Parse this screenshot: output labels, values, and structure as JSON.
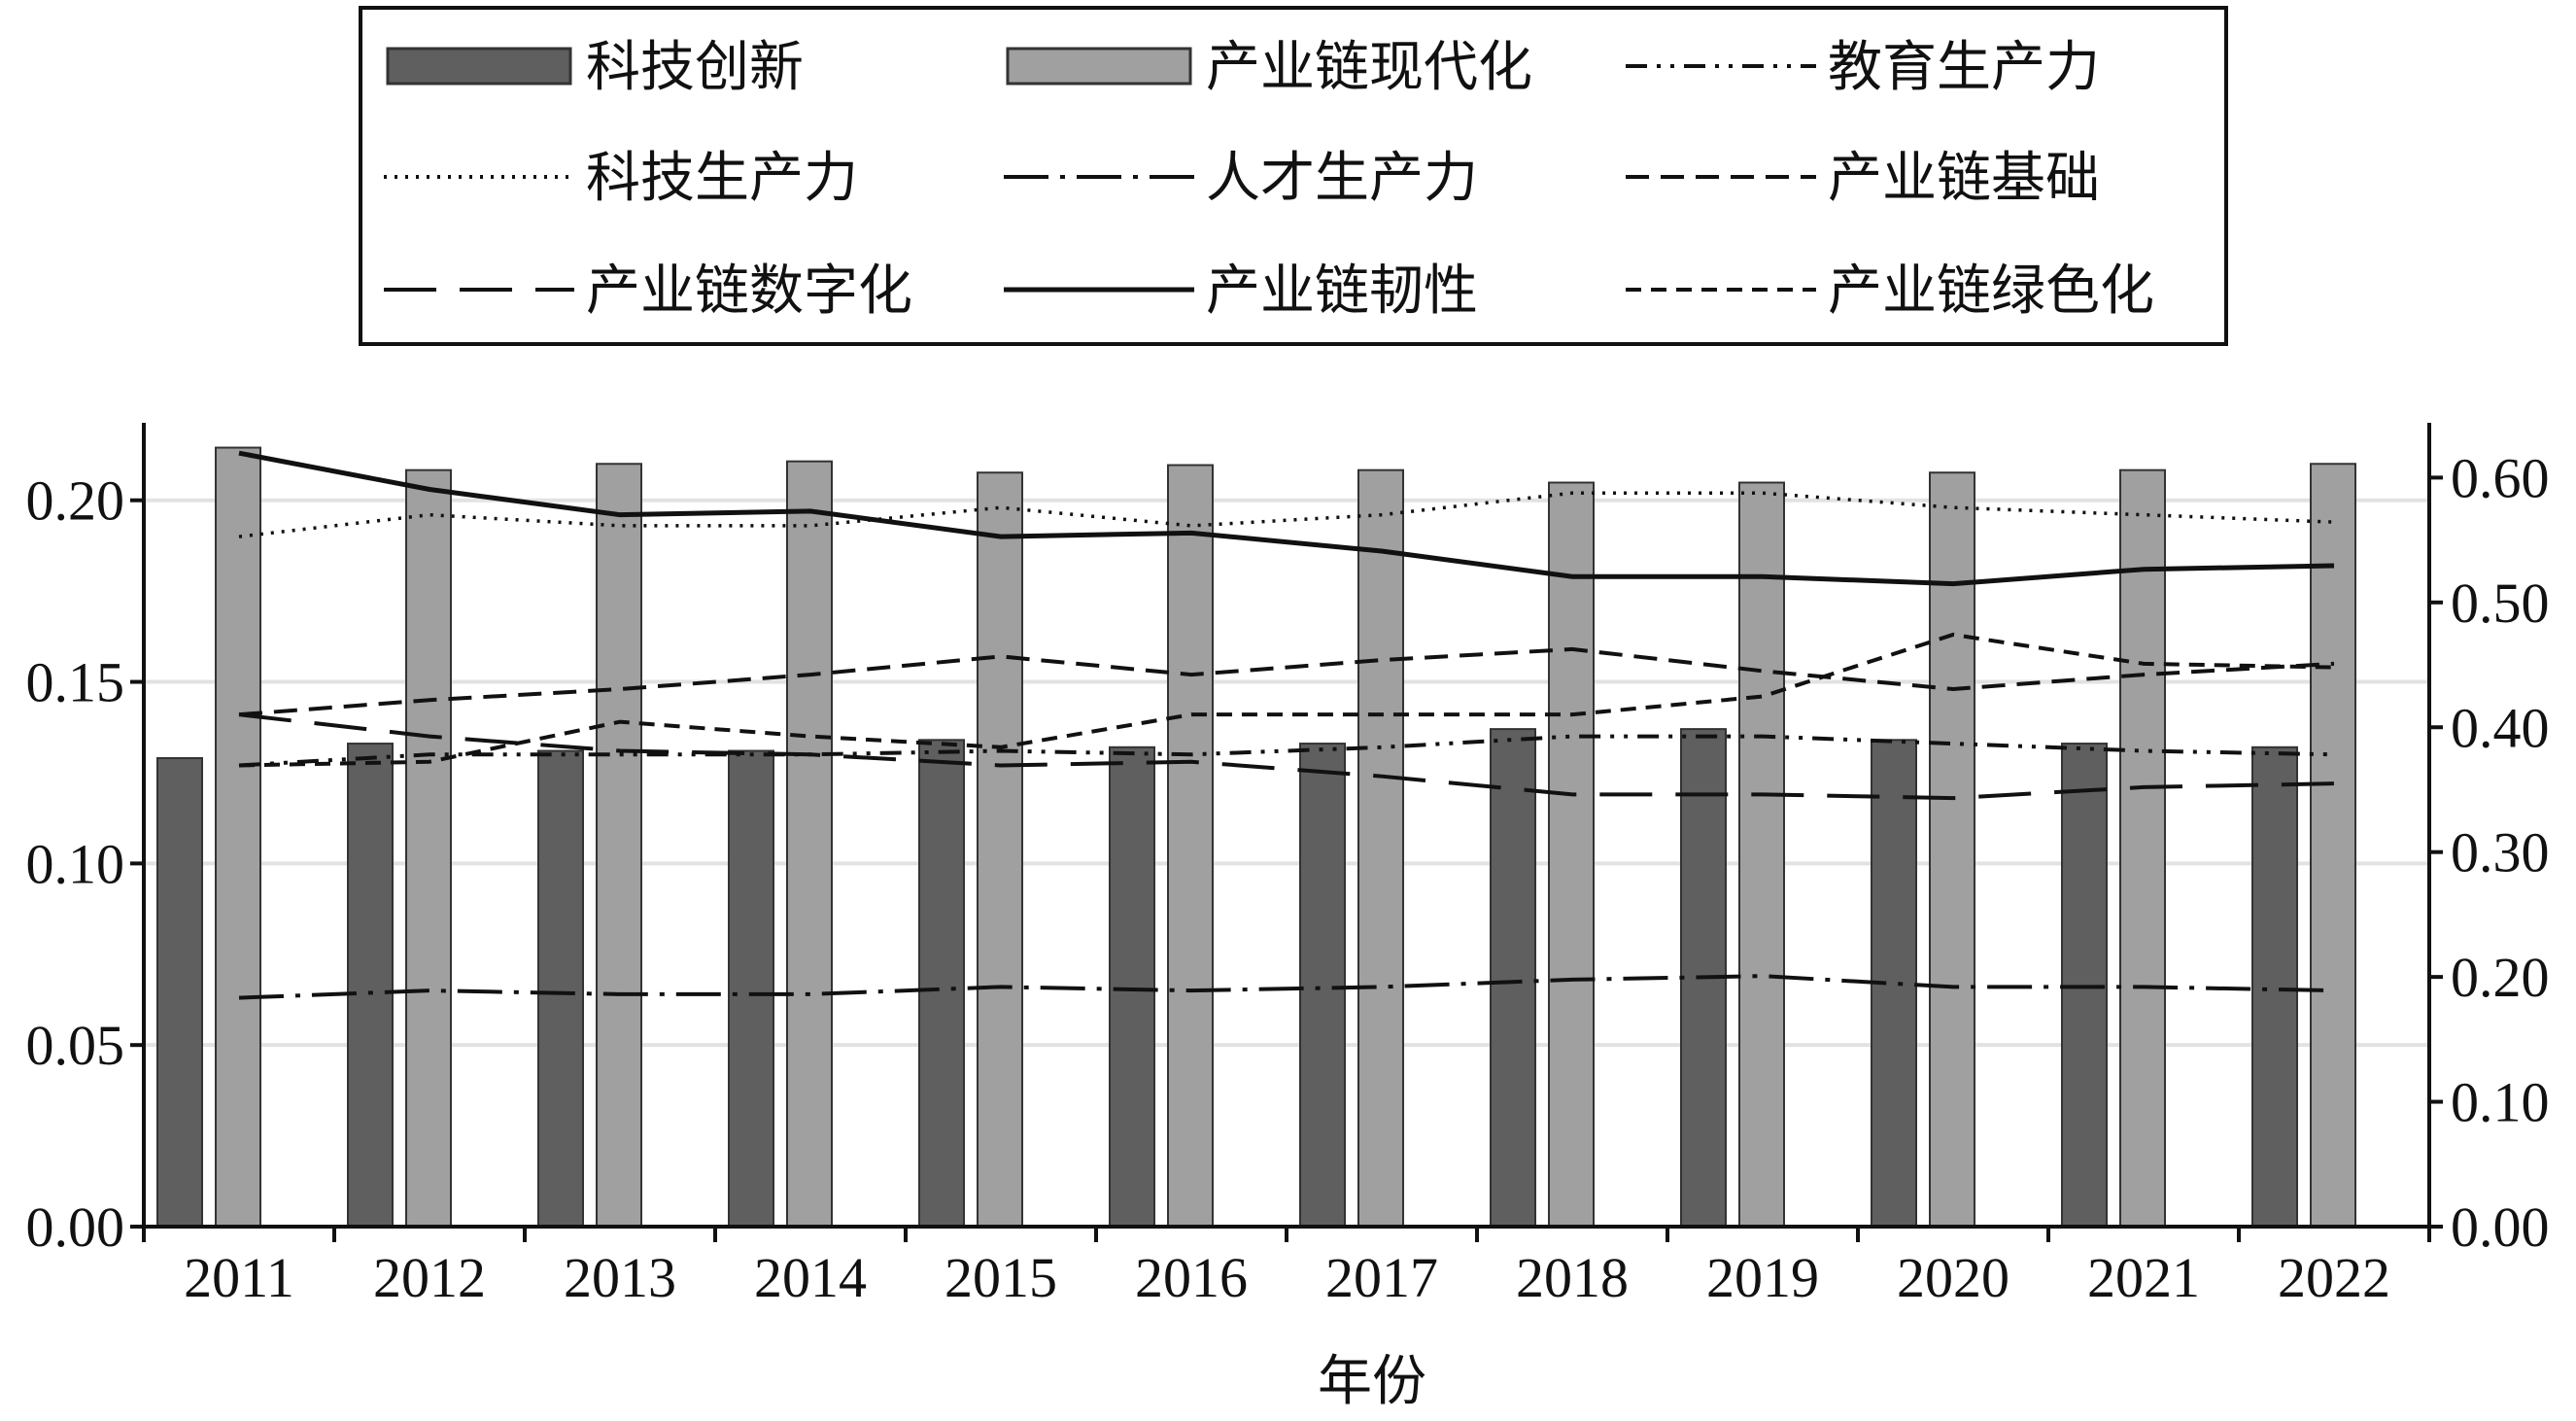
{
  "chart_data": {
    "type": "bar",
    "xlabel": "年份",
    "categories": [
      "2011",
      "2012",
      "2013",
      "2014",
      "2015",
      "2016",
      "2017",
      "2018",
      "2019",
      "2020",
      "2021",
      "2022"
    ],
    "left_axis": {
      "ylim": [
        0,
        0.22
      ],
      "ticks": [
        "0.00",
        "0.05",
        "0.10",
        "0.15",
        "0.20"
      ]
    },
    "right_axis": {
      "ylim": [
        0,
        0.64
      ],
      "ticks": [
        "0.00",
        "0.10",
        "0.20",
        "0.30",
        "0.40",
        "0.50",
        "0.60"
      ]
    },
    "grid": true,
    "legend_position": "top",
    "bar_series": [
      {
        "name": "科技创新",
        "axis": "left",
        "color": "#5f5f5f",
        "values": [
          0.129,
          0.133,
          0.131,
          0.131,
          0.134,
          0.132,
          0.133,
          0.137,
          0.137,
          0.134,
          0.133,
          0.132
        ]
      },
      {
        "name": "产业链现代化",
        "axis": "right",
        "color": "#a0a0a0",
        "values": [
          0.624,
          0.606,
          0.611,
          0.613,
          0.604,
          0.61,
          0.606,
          0.596,
          0.596,
          0.604,
          0.606,
          0.611
        ]
      }
    ],
    "line_series": [
      {
        "name": "教育生产力",
        "axis": "left",
        "style": "dashdotdot",
        "values": [
          0.127,
          0.13,
          0.13,
          0.13,
          0.131,
          0.13,
          0.132,
          0.135,
          0.135,
          0.133,
          0.131,
          0.13
        ]
      },
      {
        "name": "科技生产力",
        "axis": "left",
        "style": "dotted",
        "values": [
          0.19,
          0.196,
          0.193,
          0.193,
          0.198,
          0.193,
          0.196,
          0.202,
          0.202,
          0.198,
          0.196,
          0.194
        ]
      },
      {
        "name": "人才生产力",
        "axis": "left",
        "style": "longdashdot",
        "values": [
          0.063,
          0.065,
          0.064,
          0.064,
          0.066,
          0.065,
          0.066,
          0.068,
          0.069,
          0.066,
          0.066,
          0.065
        ]
      },
      {
        "name": "产业链基础",
        "axis": "left",
        "style": "mediumdash",
        "values": [
          0.141,
          0.145,
          0.148,
          0.152,
          0.157,
          0.152,
          0.156,
          0.159,
          0.153,
          0.148,
          0.152,
          0.155
        ]
      },
      {
        "name": "产业链数字化",
        "axis": "left",
        "style": "longdash",
        "values": [
          0.141,
          0.135,
          0.131,
          0.13,
          0.127,
          0.128,
          0.124,
          0.119,
          0.119,
          0.118,
          0.121,
          0.122
        ]
      },
      {
        "name": "产业链韧性",
        "axis": "left",
        "style": "solid",
        "values": [
          0.213,
          0.203,
          0.196,
          0.197,
          0.19,
          0.191,
          0.186,
          0.179,
          0.179,
          0.177,
          0.181,
          0.182
        ]
      },
      {
        "name": "产业链绿色化",
        "axis": "left",
        "style": "shortdash",
        "values": [
          0.127,
          0.128,
          0.139,
          0.135,
          0.132,
          0.141,
          0.141,
          0.141,
          0.146,
          0.163,
          0.155,
          0.154
        ]
      }
    ]
  }
}
